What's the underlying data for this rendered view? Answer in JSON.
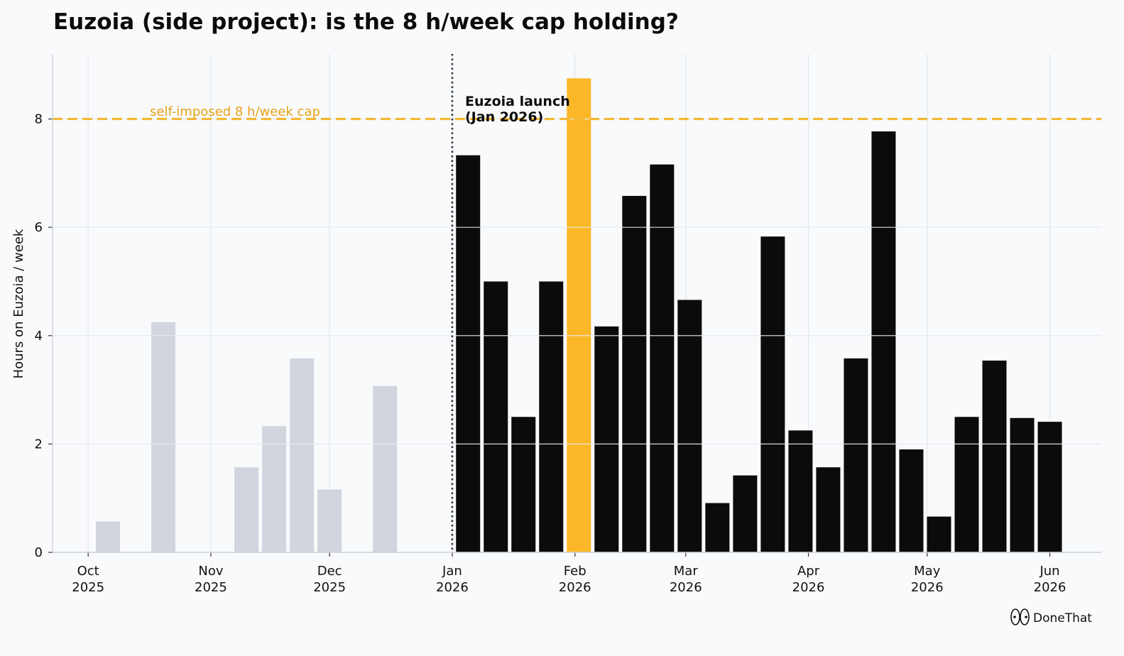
{
  "chart_data": {
    "type": "bar",
    "title": "Euzoia (side project): is the 8 h/week cap holding?",
    "xlabel": "",
    "ylabel": "Hours on Euzoia / week",
    "ylim": [
      0,
      9.2
    ],
    "yticks": [
      0,
      2,
      4,
      6,
      8
    ],
    "x_axis_type": "date",
    "xlim": [
      "2025-09-22",
      "2026-06-14"
    ],
    "xticks": [
      {
        "date": "2025-10-01",
        "label_month": "Oct",
        "label_year": "2025"
      },
      {
        "date": "2025-11-01",
        "label_month": "Nov",
        "label_year": "2025"
      },
      {
        "date": "2025-12-01",
        "label_month": "Dec",
        "label_year": "2025"
      },
      {
        "date": "2026-01-01",
        "label_month": "Jan",
        "label_year": "2026"
      },
      {
        "date": "2026-02-01",
        "label_month": "Feb",
        "label_year": "2026"
      },
      {
        "date": "2026-03-01",
        "label_month": "Mar",
        "label_year": "2026"
      },
      {
        "date": "2026-04-01",
        "label_month": "Apr",
        "label_year": "2026"
      },
      {
        "date": "2026-05-01",
        "label_month": "May",
        "label_year": "2026"
      },
      {
        "date": "2026-06-01",
        "label_month": "Jun",
        "label_year": "2026"
      }
    ],
    "grid": true,
    "series": [
      {
        "color": "#d1d5de",
        "points": [
          {
            "date": "2025-10-06",
            "value": 0.57
          },
          {
            "date": "2025-10-20",
            "value": 4.25
          },
          {
            "date": "2025-11-10",
            "value": 1.57
          },
          {
            "date": "2025-11-17",
            "value": 2.33
          },
          {
            "date": "2025-11-24",
            "value": 3.58
          },
          {
            "date": "2025-12-01",
            "value": 1.16
          },
          {
            "date": "2025-12-15",
            "value": 3.07
          }
        ]
      },
      {
        "color": "#0b0b0b",
        "highlight_color": "#fbb728",
        "points": [
          {
            "date": "2026-01-05",
            "value": 7.33
          },
          {
            "date": "2026-01-12",
            "value": 5.0
          },
          {
            "date": "2026-01-19",
            "value": 2.5
          },
          {
            "date": "2026-01-26",
            "value": 5.0
          },
          {
            "date": "2026-02-02",
            "value": 8.75,
            "highlight": true
          },
          {
            "date": "2026-02-09",
            "value": 4.17
          },
          {
            "date": "2026-02-16",
            "value": 6.58
          },
          {
            "date": "2026-02-23",
            "value": 7.16
          },
          {
            "date": "2026-03-02",
            "value": 4.66
          },
          {
            "date": "2026-03-09",
            "value": 0.91
          },
          {
            "date": "2026-03-16",
            "value": 1.42
          },
          {
            "date": "2026-03-23",
            "value": 5.83
          },
          {
            "date": "2026-03-30",
            "value": 2.25
          },
          {
            "date": "2026-04-06",
            "value": 1.57
          },
          {
            "date": "2026-04-13",
            "value": 3.58
          },
          {
            "date": "2026-04-20",
            "value": 7.77
          },
          {
            "date": "2026-04-27",
            "value": 1.9
          },
          {
            "date": "2026-05-04",
            "value": 0.66
          },
          {
            "date": "2026-05-11",
            "value": 2.5
          },
          {
            "date": "2026-05-18",
            "value": 3.54
          },
          {
            "date": "2026-05-25",
            "value": 2.48
          },
          {
            "date": "2026-06-01",
            "value": 2.41
          }
        ]
      }
    ],
    "reference_line": {
      "value": 8,
      "label": "self-imposed 8 h/week cap",
      "color": "#f4b731",
      "style": "dashed"
    },
    "event_line": {
      "date": "2026-01-01",
      "label_line1": "Euzoia launch",
      "label_line2": "(Jan 2026)",
      "style": "dotted"
    },
    "watermark": {
      "text": "DoneThat",
      "icon": "eyes-icon"
    }
  }
}
